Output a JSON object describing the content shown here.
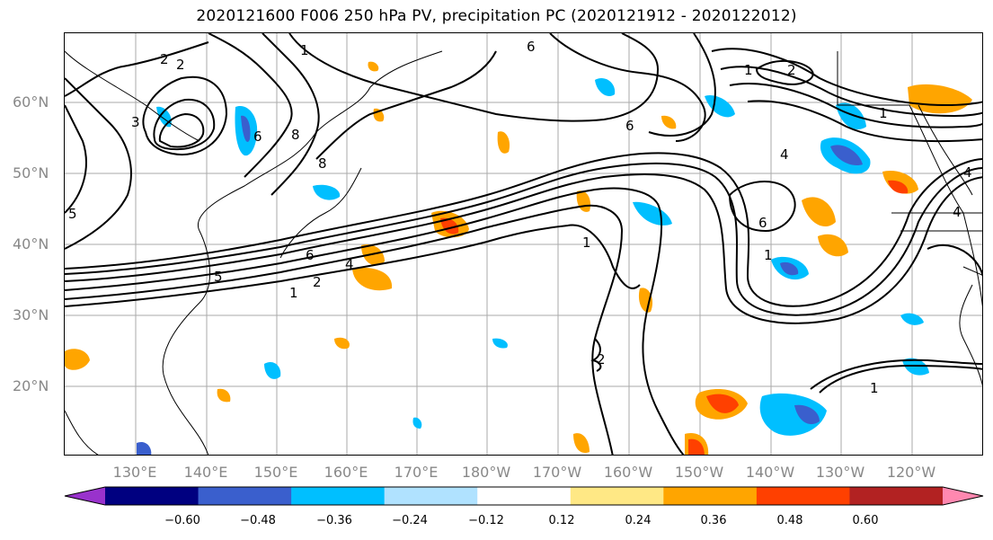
{
  "title": "2020121600 F006 250 hPa PV, precipitation PC (2020121912 - 2020122012)",
  "map": {
    "lat_labels": [
      "60°N",
      "50°N",
      "40°N",
      "30°N",
      "20°N"
    ],
    "lon_labels": [
      "130°E",
      "140°E",
      "150°E",
      "160°E",
      "170°E",
      "180°W",
      "170°W",
      "160°W",
      "150°W",
      "140°W",
      "130°W",
      "120°W"
    ],
    "contour_labels": [
      "1",
      "2",
      "4",
      "5",
      "6",
      "8",
      "1",
      "2",
      "3",
      "6",
      "1",
      "2",
      "6",
      "1",
      "4",
      "6",
      "1",
      "2",
      "4",
      "1",
      "1",
      "4",
      "2",
      "5",
      "8",
      "6"
    ]
  },
  "colorbar": {
    "ticks": [
      "−0.60",
      "−0.48",
      "−0.36",
      "−0.24",
      "−0.12",
      "0.12",
      "0.24",
      "0.36",
      "0.48",
      "0.60"
    ],
    "colors": [
      "#9932cc",
      "#000080",
      "#3a5fcd",
      "#00bfff",
      "#b0e2ff",
      "#ffffff",
      "#ffe885",
      "#ffa500",
      "#ff4000",
      "#b22222",
      "#ff88b0"
    ]
  }
}
